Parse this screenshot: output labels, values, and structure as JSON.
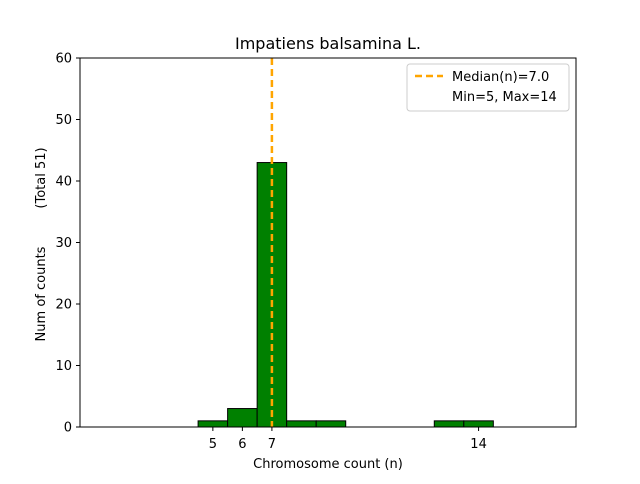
{
  "chart_data": {
    "type": "bar",
    "title": "Impatiens balsamina L.",
    "xlabel": "Chromosome count (n)",
    "ylabel": "Num of counts",
    "ylabel_total": "(Total 51)",
    "xlim": [
      0.5,
      17.3
    ],
    "ylim": [
      0,
      60
    ],
    "y_ticks": [
      0,
      10,
      20,
      30,
      40,
      50,
      60
    ],
    "x_ticks": [
      5,
      6,
      7,
      14
    ],
    "bins": [
      {
        "left": 4.5,
        "right": 5.5,
        "count": 1
      },
      {
        "left": 5.5,
        "right": 6.5,
        "count": 3
      },
      {
        "left": 6.5,
        "right": 7.5,
        "count": 43
      },
      {
        "left": 7.5,
        "right": 8.5,
        "count": 1
      },
      {
        "left": 8.5,
        "right": 9.5,
        "count": 1
      },
      {
        "left": 12.5,
        "right": 13.5,
        "count": 1
      },
      {
        "left": 13.5,
        "right": 14.5,
        "count": 1
      }
    ],
    "median": 7.0,
    "bar_color": "#008000",
    "median_color": "#FFA500",
    "legend": {
      "position": "top-right",
      "median_label": "Median(n)=7.0",
      "range_label": "Min=5, Max=14"
    }
  }
}
